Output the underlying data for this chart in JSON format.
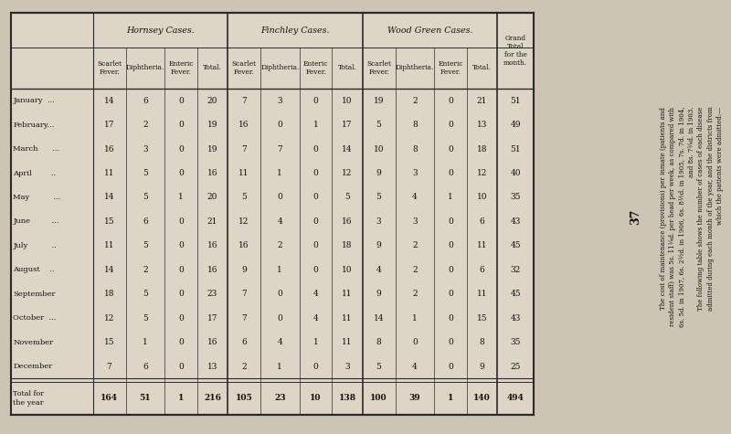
{
  "bg_color": "#cdc5b4",
  "table_bg": "#ddd6c6",
  "title_number": "37",
  "side_text_lines": [
    "The cost of maintenance (provisions) per inmate (patients and",
    "resident staff) was 5s. 11¼d. per head per week, as compared with",
    "6s. 5d. in 1907, 6s. 2½d. in 1906, 6s. 8½d. in 1905, 7s. 7d. in 1904,",
    "and 8s. 7¼d. in 1903.",
    "    The following table shows the number of cases of each disease",
    "admitted during each month of the year, and the districts from",
    "which the patients were admitted:—"
  ],
  "months": [
    "January  ...",
    "February...",
    "March      ...",
    "April       ..",
    "May         ...",
    "June        ...",
    "July         ..",
    "August    ..",
    "September",
    "October  ...",
    "November",
    "December"
  ],
  "data": [
    [
      14,
      6,
      0,
      20,
      7,
      3,
      0,
      10,
      19,
      2,
      0,
      21,
      51
    ],
    [
      17,
      2,
      0,
      19,
      16,
      0,
      1,
      17,
      5,
      8,
      0,
      13,
      49
    ],
    [
      16,
      3,
      0,
      19,
      7,
      7,
      0,
      14,
      10,
      8,
      0,
      18,
      51
    ],
    [
      11,
      5,
      0,
      16,
      11,
      1,
      0,
      12,
      9,
      3,
      0,
      12,
      40
    ],
    [
      14,
      5,
      1,
      20,
      5,
      0,
      0,
      5,
      5,
      4,
      1,
      10,
      35
    ],
    [
      15,
      6,
      0,
      21,
      12,
      4,
      0,
      16,
      3,
      3,
      0,
      6,
      43
    ],
    [
      11,
      5,
      0,
      16,
      16,
      2,
      0,
      18,
      9,
      2,
      0,
      11,
      45
    ],
    [
      14,
      2,
      0,
      16,
      9,
      1,
      0,
      10,
      4,
      2,
      0,
      6,
      32
    ],
    [
      18,
      5,
      0,
      23,
      7,
      0,
      4,
      11,
      9,
      2,
      0,
      11,
      45
    ],
    [
      12,
      5,
      0,
      17,
      7,
      0,
      4,
      11,
      14,
      1,
      0,
      15,
      43
    ],
    [
      15,
      1,
      0,
      16,
      6,
      4,
      1,
      11,
      8,
      0,
      0,
      8,
      35
    ],
    [
      7,
      6,
      0,
      13,
      2,
      1,
      0,
      3,
      5,
      4,
      0,
      9,
      25
    ]
  ],
  "totals": [
    164,
    51,
    1,
    216,
    105,
    23,
    10,
    138,
    100,
    39,
    1,
    140,
    494
  ]
}
